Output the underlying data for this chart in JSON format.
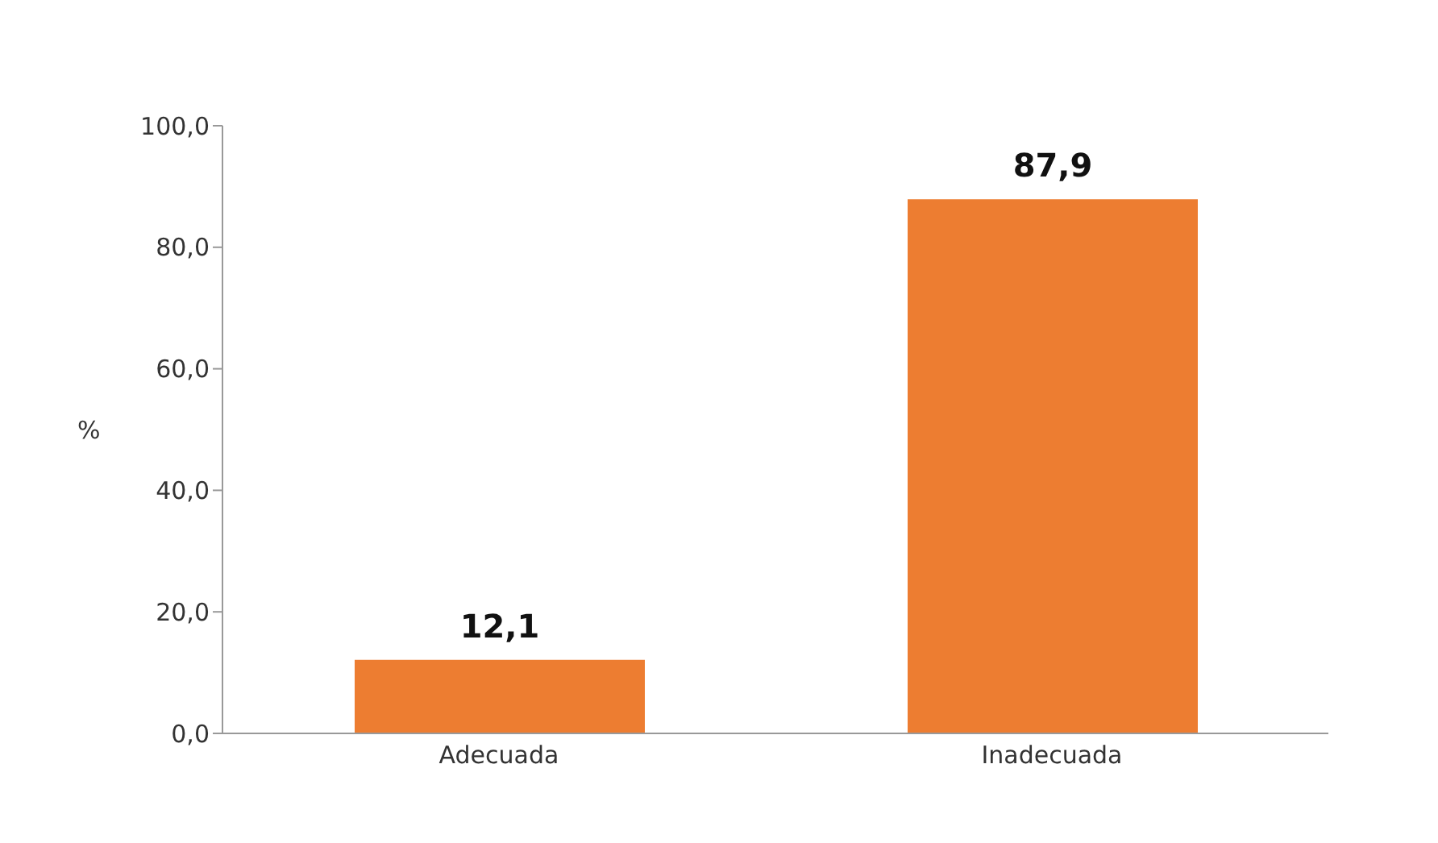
{
  "chart_data": {
    "type": "bar",
    "ylabel": "%",
    "categories": [
      "Adecuada",
      "Inadecuada"
    ],
    "values": [
      12.1,
      87.9
    ],
    "color": "#ed7d31",
    "value_labels": [
      "12,1",
      "87,9"
    ],
    "ylim": [
      0,
      100
    ],
    "yticks": [
      {
        "value": 0,
        "label": "0,0"
      },
      {
        "value": 20,
        "label": "20,0"
      },
      {
        "value": 40,
        "label": "40,0"
      },
      {
        "value": 60,
        "label": "60,0"
      },
      {
        "value": 80,
        "label": "80,0"
      },
      {
        "value": 100,
        "label": "100,0"
      }
    ],
    "grid": false,
    "legend": false
  }
}
